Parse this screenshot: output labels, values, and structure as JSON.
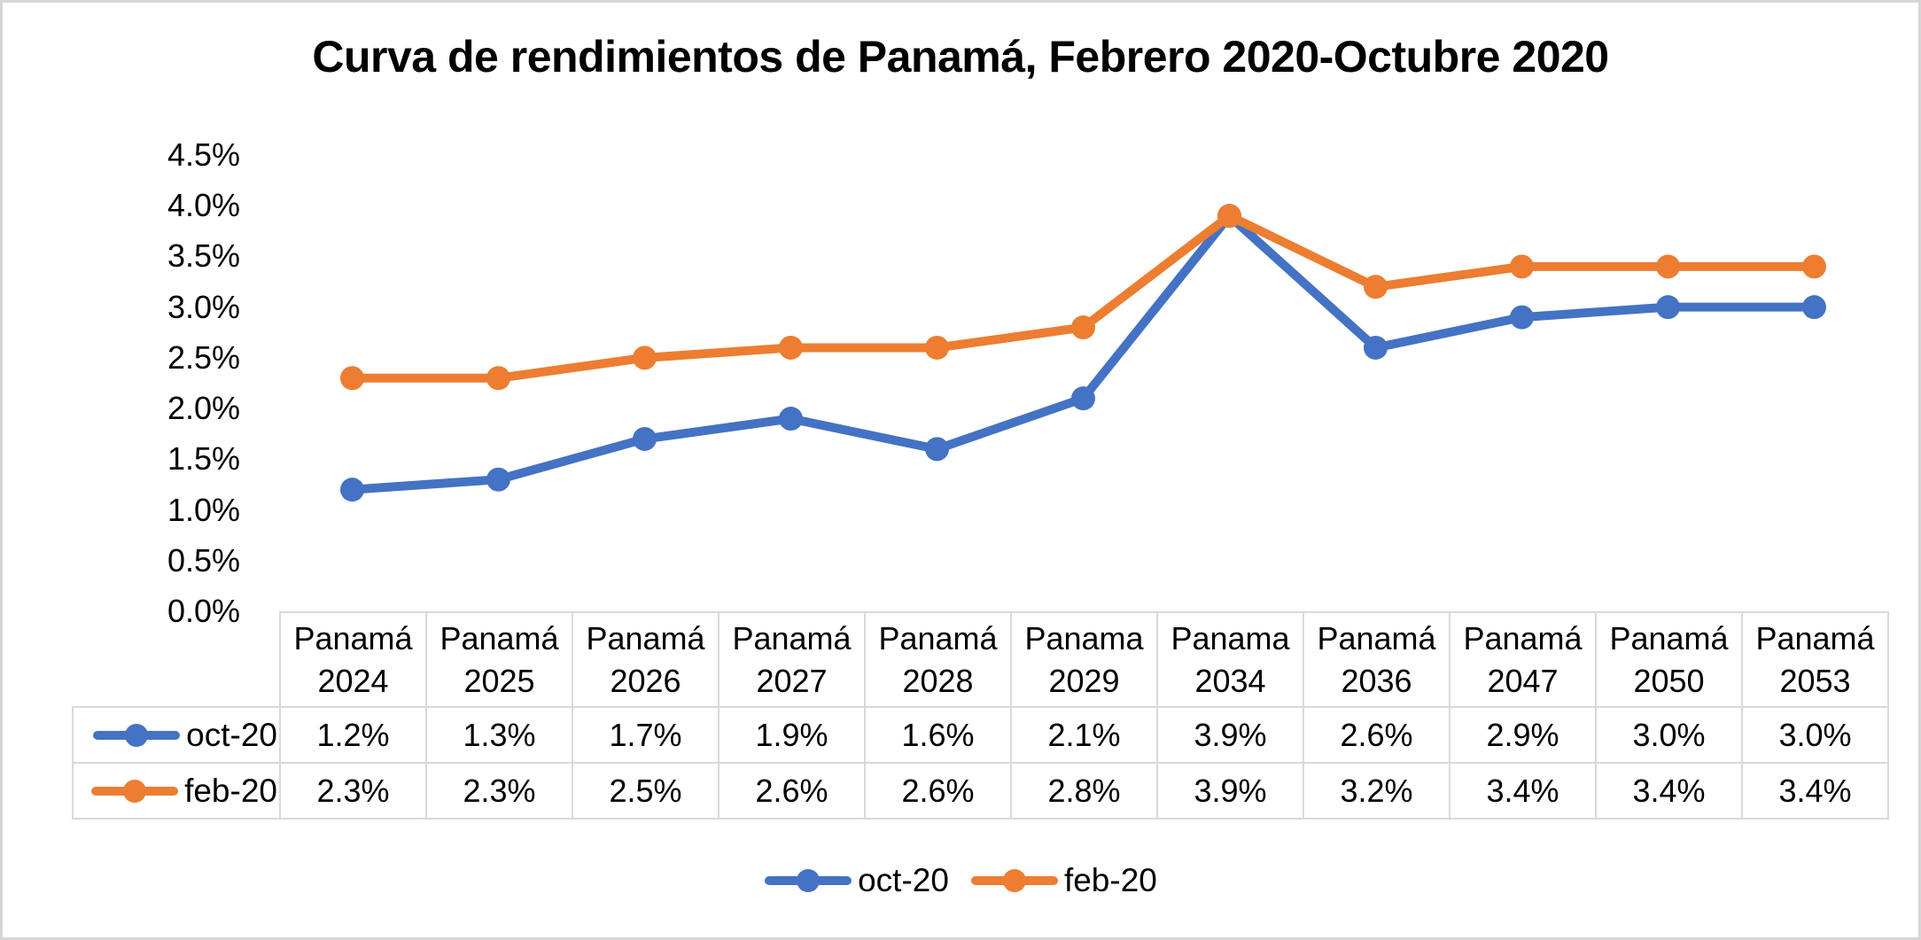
{
  "frame": {
    "background": "#FFFFFF",
    "border_color": "#D6D6D6"
  },
  "chart_data": {
    "type": "line",
    "title": "Curva de rendimientos de Panamá, Febrero 2020-Octubre 2020",
    "categories": [
      "Panamá 2024",
      "Panamá 2025",
      "Panamá 2026",
      "Panamá 2027",
      "Panamá 2028",
      "Panama 2029",
      "Panama 2034",
      "Panamá 2036",
      "Panamá 2047",
      "Panamá 2050",
      "Panamá 2053"
    ],
    "series": [
      {
        "name": "oct-20",
        "color": "#4472C4",
        "values": [
          1.2,
          1.3,
          1.7,
          1.9,
          1.6,
          2.1,
          3.9,
          2.6,
          2.9,
          3.0,
          3.0
        ]
      },
      {
        "name": "feb-20",
        "color": "#ED7D31",
        "values": [
          2.3,
          2.3,
          2.5,
          2.6,
          2.6,
          2.8,
          3.9,
          3.2,
          3.4,
          3.4,
          3.4
        ]
      }
    ],
    "y_ticks": [
      "4.5%",
      "4.0%",
      "3.5%",
      "3.0%",
      "2.5%",
      "2.0%",
      "1.5%",
      "1.0%",
      "0.5%",
      "0.0%"
    ],
    "ylim": [
      0,
      4.5
    ],
    "value_suffix": "%",
    "grid": false,
    "legend_position": "bottom",
    "data_table_shown": true,
    "marker_style": "filled-circle"
  }
}
